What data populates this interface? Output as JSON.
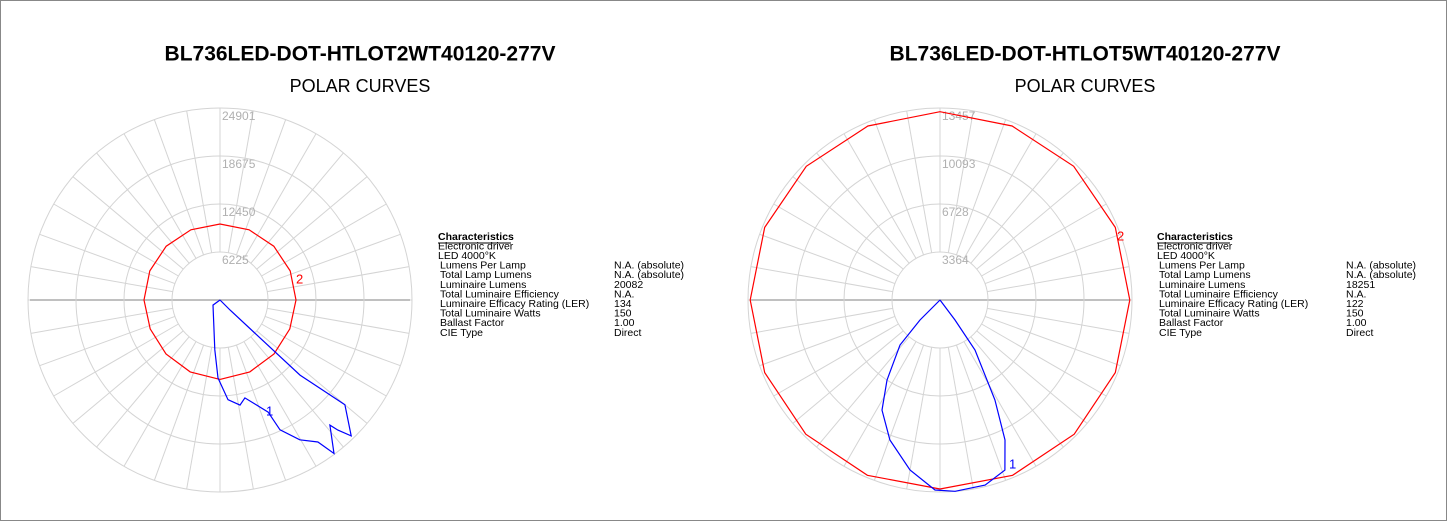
{
  "chart_data": [
    {
      "type": "polar",
      "title": "BL736LED-DOT-HTLOT2WT40120-277V",
      "subtitle": "POLAR CURVES",
      "rlim": [
        0,
        24901
      ],
      "rticks": [
        6225,
        12450,
        18675,
        24901
      ],
      "series": [
        {
          "name": "2",
          "color": "#ff0000",
          "angles": [
            0,
            22.5,
            45,
            67.5,
            90,
            112.5,
            135,
            157.5,
            180,
            202.5,
            225,
            247.5,
            270,
            292.5,
            315,
            337.5,
            360
          ],
          "values": [
            10300,
            10100,
            9900,
            9800,
            9860,
            9860,
            9860,
            9860,
            9860,
            9860,
            9860,
            9860,
            9860,
            9800,
            9900,
            10100,
            10300
          ]
        },
        {
          "name": "1",
          "color": "#0000ff",
          "angles": [
            0,
            -54,
            -6,
            -1.5,
            4.6,
            10.8,
            14.3,
            23.2,
            24.8,
            29.7,
            34.6,
            36.6,
            41.3,
            42.2,
            44,
            50,
            46.8,
            45,
            0
          ],
          "values": [
            0,
            1115,
            6485,
            10116,
            12970,
            13870,
            13100,
            15820,
            18550,
            20880,
            22370,
            24800,
            21590,
            22770,
            24500,
            21140,
            14230,
            1830,
            0
          ]
        }
      ]
    },
    {
      "type": "polar",
      "title": "BL736LED-DOT-HTLOT5WT40120-277V",
      "subtitle": "POLAR CURVES",
      "rlim": [
        0,
        13457
      ],
      "rticks": [
        3364,
        6728,
        10093,
        13457
      ],
      "series": [
        {
          "name": "2",
          "color": "#ff0000",
          "angles": [
            0,
            22.5,
            45,
            67.5,
            90,
            112.5,
            135,
            157.5,
            180,
            202.5,
            225,
            247.5,
            270,
            292.5,
            315,
            337.5,
            360
          ],
          "values": [
            13250,
            13300,
            13300,
            13300,
            13300,
            13300,
            13250,
            13200,
            13200,
            13200,
            13250,
            13300,
            13300,
            13300,
            13300,
            13300,
            13250
          ]
        },
        {
          "name": "1",
          "color": "#0000ff",
          "angles": [
            0,
            -45,
            -41.6,
            -33.5,
            -27.8,
            -19.7,
            -10,
            -1.5,
            4.5,
            13.7,
            20.9,
            24.9,
            28.8,
            35,
            36.9,
            0
          ],
          "values": [
            0,
            1983,
            4220,
            6730,
            8720,
            10420,
            12100,
            13320,
            13450,
            13350,
            12760,
            10820,
            7990,
            4280,
            1750,
            0
          ]
        }
      ]
    }
  ],
  "panels": [
    {
      "heading": "Characteristics",
      "lines": [
        "Electronic driver",
        "LED 4000°K"
      ],
      "rows": [
        [
          "Lumens Per Lamp",
          "N.A. (absolute)"
        ],
        [
          "Total Lamp Lumens",
          "N.A. (absolute)"
        ],
        [
          "Luminaire Lumens",
          "20082"
        ],
        [
          "Total Luminaire Efficiency",
          "N.A."
        ],
        [
          "Luminaire Efficacy Rating (LER)",
          "134"
        ],
        [
          "Total Luminaire Watts",
          "150"
        ],
        [
          "Ballast Factor",
          "1.00"
        ],
        [
          "CIE Type",
          "Direct"
        ]
      ]
    },
    {
      "heading": "Characteristics",
      "lines": [
        "Electronic driver",
        "LED 4000°K"
      ],
      "rows": [
        [
          "Lumens Per Lamp",
          "N.A. (absolute)"
        ],
        [
          "Total Lamp Lumens",
          "N.A. (absolute)"
        ],
        [
          "Luminaire Lumens",
          "18251"
        ],
        [
          "Total Luminaire Efficiency",
          "N.A."
        ],
        [
          "Luminaire Efficacy Rating (LER)",
          "122"
        ],
        [
          "Total Luminaire Watts",
          "150"
        ],
        [
          "Ballast Factor",
          "1.00"
        ],
        [
          "CIE Type",
          "Direct"
        ]
      ]
    }
  ]
}
